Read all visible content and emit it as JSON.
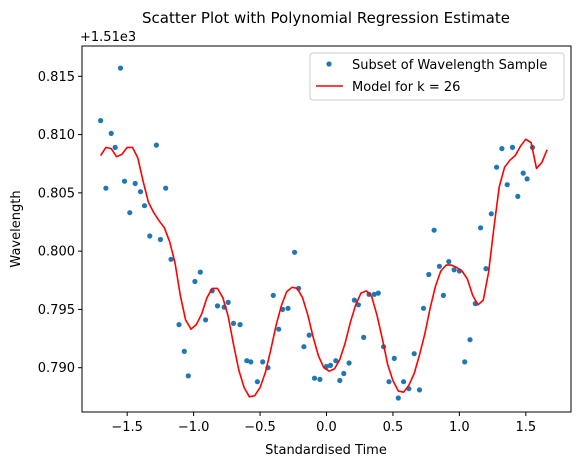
{
  "chart_data": {
    "type": "scatter",
    "title": "Scatter Plot with Polynomial Regression Estimate",
    "xlabel": "Standardised Time",
    "ylabel": "Wavelength",
    "offset_text": "+1.51e3",
    "xlim": [
      -1.84,
      1.84
    ],
    "ylim": [
      0.7862,
      0.8176
    ],
    "x_ticks": [
      -1.5,
      -1.0,
      -0.5,
      0.0,
      0.5,
      1.0,
      1.5
    ],
    "x_tick_labels": [
      "−1.5",
      "−1.0",
      "−0.5",
      "0.0",
      "0.5",
      "1.0",
      "1.5"
    ],
    "y_ticks": [
      0.79,
      0.795,
      0.8,
      0.805,
      0.81,
      0.815
    ],
    "y_tick_labels": [
      "0.790",
      "0.795",
      "0.800",
      "0.805",
      "0.810",
      "0.815"
    ],
    "grid": false,
    "legend_position": "top-right",
    "series": [
      {
        "name": "Subset of Wavelength Sample",
        "kind": "scatter",
        "color": "#1f77b4",
        "points": [
          [
            -1.7,
            0.8112
          ],
          [
            -1.66,
            0.8054
          ],
          [
            -1.62,
            0.8101
          ],
          [
            -1.59,
            0.8089
          ],
          [
            -1.55,
            0.8157
          ],
          [
            -1.52,
            0.806
          ],
          [
            -1.48,
            0.8033
          ],
          [
            -1.44,
            0.8058
          ],
          [
            -1.4,
            0.8051
          ],
          [
            -1.37,
            0.8039
          ],
          [
            -1.33,
            0.8013
          ],
          [
            -1.28,
            0.8091
          ],
          [
            -1.25,
            0.801
          ],
          [
            -1.21,
            0.8054
          ],
          [
            -1.17,
            0.7993
          ],
          [
            -1.11,
            0.7937
          ],
          [
            -1.07,
            0.7914
          ],
          [
            -1.04,
            0.7893
          ],
          [
            -0.99,
            0.7974
          ],
          [
            -0.95,
            0.7982
          ],
          [
            -0.91,
            0.7941
          ],
          [
            -0.86,
            0.7966
          ],
          [
            -0.82,
            0.7953
          ],
          [
            -0.77,
            0.7952
          ],
          [
            -0.74,
            0.7956
          ],
          [
            -0.7,
            0.7938
          ],
          [
            -0.65,
            0.7937
          ],
          [
            -0.6,
            0.7906
          ],
          [
            -0.57,
            0.7905
          ],
          [
            -0.52,
            0.7888
          ],
          [
            -0.48,
            0.7905
          ],
          [
            -0.44,
            0.79
          ],
          [
            -0.4,
            0.7962
          ],
          [
            -0.36,
            0.7933
          ],
          [
            -0.33,
            0.795
          ],
          [
            -0.29,
            0.7951
          ],
          [
            -0.24,
            0.7999
          ],
          [
            -0.21,
            0.7968
          ],
          [
            -0.17,
            0.7918
          ],
          [
            -0.13,
            0.7928
          ],
          [
            -0.09,
            0.7891
          ],
          [
            -0.05,
            0.789
          ],
          [
            0.0,
            0.7901
          ],
          [
            0.03,
            0.7902
          ],
          [
            0.07,
            0.7906
          ],
          [
            0.1,
            0.7889
          ],
          [
            0.13,
            0.7895
          ],
          [
            0.17,
            0.7904
          ],
          [
            0.21,
            0.7958
          ],
          [
            0.24,
            0.7954
          ],
          [
            0.28,
            0.7926
          ],
          [
            0.32,
            0.7963
          ],
          [
            0.36,
            0.7963
          ],
          [
            0.39,
            0.7964
          ],
          [
            0.43,
            0.7918
          ],
          [
            0.47,
            0.7888
          ],
          [
            0.51,
            0.7908
          ],
          [
            0.54,
            0.7874
          ],
          [
            0.58,
            0.7888
          ],
          [
            0.62,
            0.7882
          ],
          [
            0.66,
            0.7912
          ],
          [
            0.7,
            0.7881
          ],
          [
            0.73,
            0.7951
          ],
          [
            0.77,
            0.798
          ],
          [
            0.81,
            0.8018
          ],
          [
            0.85,
            0.7987
          ],
          [
            0.88,
            0.7962
          ],
          [
            0.92,
            0.7991
          ],
          [
            0.96,
            0.7984
          ],
          [
            1.0,
            0.7983
          ],
          [
            1.04,
            0.7905
          ],
          [
            1.08,
            0.7924
          ],
          [
            1.12,
            0.7955
          ],
          [
            1.16,
            0.802
          ],
          [
            1.2,
            0.7985
          ],
          [
            1.24,
            0.8032
          ],
          [
            1.28,
            0.8072
          ],
          [
            1.32,
            0.8088
          ],
          [
            1.36,
            0.8057
          ],
          [
            1.4,
            0.8089
          ],
          [
            1.44,
            0.8047
          ],
          [
            1.48,
            0.8067
          ],
          [
            1.51,
            0.8062
          ],
          [
            1.55,
            0.8089
          ]
        ]
      },
      {
        "name": "Model for k = 26",
        "kind": "line",
        "color": "#ff0000",
        "points": [
          [
            -1.7,
            0.8082
          ],
          [
            -1.66,
            0.8089
          ],
          [
            -1.62,
            0.8088
          ],
          [
            -1.58,
            0.8081
          ],
          [
            -1.54,
            0.8083
          ],
          [
            -1.5,
            0.8089
          ],
          [
            -1.46,
            0.8089
          ],
          [
            -1.42,
            0.808
          ],
          [
            -1.38,
            0.806
          ],
          [
            -1.34,
            0.8042
          ],
          [
            -1.3,
            0.8033
          ],
          [
            -1.26,
            0.8026
          ],
          [
            -1.22,
            0.802
          ],
          [
            -1.18,
            0.8008
          ],
          [
            -1.14,
            0.799
          ],
          [
            -1.1,
            0.7962
          ],
          [
            -1.06,
            0.7941
          ],
          [
            -1.02,
            0.7933
          ],
          [
            -0.98,
            0.7937
          ],
          [
            -0.94,
            0.7946
          ],
          [
            -0.9,
            0.796
          ],
          [
            -0.86,
            0.7968
          ],
          [
            -0.82,
            0.7968
          ],
          [
            -0.78,
            0.796
          ],
          [
            -0.74,
            0.7944
          ],
          [
            -0.7,
            0.792
          ],
          [
            -0.66,
            0.7898
          ],
          [
            -0.62,
            0.7883
          ],
          [
            -0.58,
            0.7875
          ],
          [
            -0.54,
            0.7876
          ],
          [
            -0.5,
            0.7883
          ],
          [
            -0.46,
            0.7896
          ],
          [
            -0.42,
            0.7915
          ],
          [
            -0.38,
            0.7936
          ],
          [
            -0.34,
            0.7953
          ],
          [
            -0.3,
            0.7965
          ],
          [
            -0.26,
            0.7969
          ],
          [
            -0.22,
            0.7968
          ],
          [
            -0.18,
            0.796
          ],
          [
            -0.14,
            0.7945
          ],
          [
            -0.1,
            0.7926
          ],
          [
            -0.06,
            0.791
          ],
          [
            -0.02,
            0.79
          ],
          [
            0.02,
            0.7897
          ],
          [
            0.06,
            0.7899
          ],
          [
            0.1,
            0.7907
          ],
          [
            0.14,
            0.7921
          ],
          [
            0.18,
            0.7939
          ],
          [
            0.22,
            0.7954
          ],
          [
            0.26,
            0.7964
          ],
          [
            0.3,
            0.7966
          ],
          [
            0.34,
            0.7961
          ],
          [
            0.38,
            0.7945
          ],
          [
            0.42,
            0.7925
          ],
          [
            0.46,
            0.7903
          ],
          [
            0.5,
            0.7889
          ],
          [
            0.54,
            0.788
          ],
          [
            0.58,
            0.7879
          ],
          [
            0.62,
            0.7885
          ],
          [
            0.66,
            0.7895
          ],
          [
            0.7,
            0.7911
          ],
          [
            0.74,
            0.7929
          ],
          [
            0.78,
            0.7951
          ],
          [
            0.82,
            0.797
          ],
          [
            0.86,
            0.7983
          ],
          [
            0.9,
            0.7988
          ],
          [
            0.94,
            0.7988
          ],
          [
            0.98,
            0.7986
          ],
          [
            1.02,
            0.7983
          ],
          [
            1.06,
            0.7976
          ],
          [
            1.1,
            0.7962
          ],
          [
            1.14,
            0.7954
          ],
          [
            1.18,
            0.7958
          ],
          [
            1.22,
            0.7982
          ],
          [
            1.26,
            0.802
          ],
          [
            1.3,
            0.8055
          ],
          [
            1.34,
            0.8072
          ],
          [
            1.38,
            0.8078
          ],
          [
            1.42,
            0.8082
          ],
          [
            1.46,
            0.809
          ],
          [
            1.5,
            0.8096
          ],
          [
            1.54,
            0.8093
          ],
          [
            1.58,
            0.8071
          ],
          [
            1.62,
            0.8076
          ],
          [
            1.66,
            0.8087
          ]
        ]
      }
    ]
  }
}
